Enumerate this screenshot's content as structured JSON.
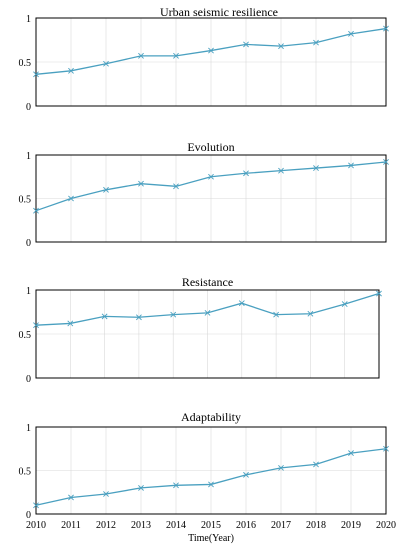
{
  "chart_data": [
    {
      "type": "line",
      "title": "Urban seismic resilience",
      "x": [
        2010,
        2011,
        2012,
        2013,
        2014,
        2015,
        2016,
        2017,
        2018,
        2019,
        2020
      ],
      "values": [
        0.36,
        0.4,
        0.48,
        0.57,
        0.57,
        0.63,
        0.7,
        0.68,
        0.72,
        0.82,
        0.88
      ],
      "ylim": [
        0,
        1
      ],
      "yticks": [
        "0",
        "0.5",
        "1"
      ],
      "grid": true,
      "line_color": "#4aa0c0",
      "marker": "x"
    },
    {
      "type": "line",
      "title": "Evolution",
      "x": [
        2010,
        2011,
        2012,
        2013,
        2014,
        2015,
        2016,
        2017,
        2018,
        2019,
        2020
      ],
      "values": [
        0.36,
        0.5,
        0.6,
        0.67,
        0.64,
        0.75,
        0.79,
        0.82,
        0.85,
        0.88,
        0.92
      ],
      "ylim": [
        0,
        1
      ],
      "yticks": [
        "0",
        "0.5",
        "1"
      ],
      "grid": true,
      "line_color": "#4aa0c0",
      "marker": "x"
    },
    {
      "type": "line",
      "title": "Resistance",
      "x": [
        2010,
        2011,
        2012,
        2013,
        2014,
        2015,
        2016,
        2017,
        2018,
        2019,
        2020
      ],
      "values": [
        0.6,
        0.62,
        0.7,
        0.69,
        0.72,
        0.74,
        0.85,
        0.72,
        0.73,
        0.84,
        0.96
      ],
      "ylim": [
        0,
        1
      ],
      "yticks": [
        "0",
        "0.5",
        "1"
      ],
      "grid": true,
      "line_color": "#4aa0c0",
      "marker": "x"
    },
    {
      "type": "line",
      "title": "Adaptability",
      "x": [
        2010,
        2011,
        2012,
        2013,
        2014,
        2015,
        2016,
        2017,
        2018,
        2019,
        2020
      ],
      "values": [
        0.1,
        0.19,
        0.23,
        0.3,
        0.33,
        0.34,
        0.45,
        0.53,
        0.57,
        0.7,
        0.75
      ],
      "ylim": [
        0,
        1
      ],
      "yticks": [
        "0",
        "0.5",
        "1"
      ],
      "xticks": [
        "2010",
        "2011",
        "2012",
        "2013",
        "2014",
        "2015",
        "2016",
        "2017",
        "2018",
        "2019",
        "2020"
      ],
      "xlabel": "Time(Year)",
      "grid": true,
      "line_color": "#4aa0c0",
      "marker": "x"
    }
  ]
}
